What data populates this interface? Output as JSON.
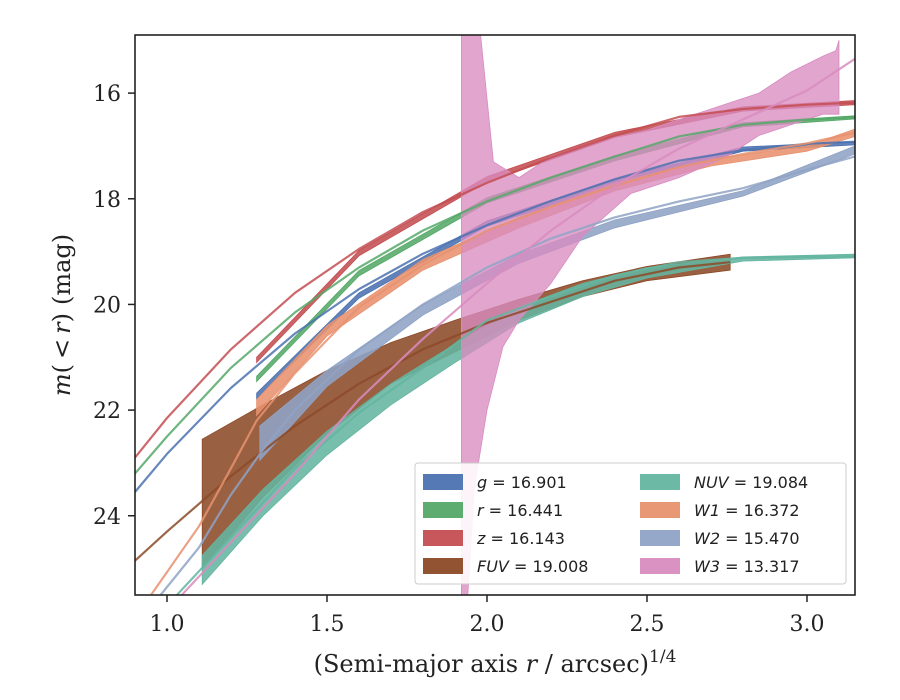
{
  "chart_data": {
    "type": "line",
    "xlabel": "(Semi-major axis r / arcsec)^1/4",
    "xlabel_parts": {
      "pre": "(Semi-major axis ",
      "var": "r",
      "post": " / arcsec)",
      "sup": "1/4"
    },
    "ylabel": "m(<r) (mag)",
    "ylabel_parts": {
      "m": "m",
      "open": "(",
      "lt": "<",
      "r": "r",
      "close": ")",
      "unit": "(mag)"
    },
    "xlim": [
      0.9,
      3.15
    ],
    "ylim": [
      25.5,
      14.9
    ],
    "y_inverted": true,
    "x_ticks": [
      {
        "v": 1.0,
        "label": "1.0"
      },
      {
        "v": 1.5,
        "label": "1.5"
      },
      {
        "v": 2.0,
        "label": "2.0"
      },
      {
        "v": 2.5,
        "label": "2.5"
      },
      {
        "v": 3.0,
        "label": "3.0"
      }
    ],
    "y_ticks": [
      {
        "v": 16,
        "label": "16"
      },
      {
        "v": 18,
        "label": "18"
      },
      {
        "v": 20,
        "label": "20"
      },
      {
        "v": 22,
        "label": "22"
      },
      {
        "v": 24,
        "label": "24"
      }
    ],
    "grid": false,
    "legend_position": "lower-right",
    "legend_columns": 2,
    "series": [
      {
        "id": "g",
        "band": "g",
        "value": "16.901",
        "color": "#4c72b0",
        "model": [
          [
            0.9,
            23.55
          ],
          [
            1.0,
            22.83
          ],
          [
            1.2,
            21.58
          ],
          [
            1.4,
            20.55
          ],
          [
            1.6,
            19.71
          ],
          [
            1.8,
            19.04
          ],
          [
            2.0,
            18.5
          ],
          [
            2.2,
            18.04
          ],
          [
            2.4,
            17.63
          ],
          [
            2.6,
            17.28
          ],
          [
            2.8,
            17.08
          ],
          [
            3.0,
            16.96
          ],
          [
            3.15,
            16.92
          ]
        ],
        "band_upper": [
          [
            1.28,
            21.68
          ],
          [
            1.6,
            19.78
          ],
          [
            2.0,
            18.42
          ],
          [
            2.4,
            17.63
          ],
          [
            2.8,
            17.02
          ],
          [
            3.15,
            16.92
          ]
        ],
        "band_lower": [
          [
            1.28,
            21.78
          ],
          [
            1.6,
            19.88
          ],
          [
            2.0,
            18.52
          ],
          [
            2.4,
            17.73
          ],
          [
            2.8,
            17.1
          ],
          [
            3.15,
            16.98
          ]
        ]
      },
      {
        "id": "r",
        "band": "r",
        "value": "16.441",
        "color": "#55a868",
        "model": [
          [
            0.9,
            23.2
          ],
          [
            1.0,
            22.5
          ],
          [
            1.2,
            21.2
          ],
          [
            1.4,
            20.15
          ],
          [
            1.6,
            19.3
          ],
          [
            1.8,
            18.6
          ],
          [
            2.0,
            18.05
          ],
          [
            2.2,
            17.6
          ],
          [
            2.4,
            17.2
          ],
          [
            2.6,
            16.82
          ],
          [
            2.8,
            16.6
          ],
          [
            3.0,
            16.5
          ],
          [
            3.15,
            16.46
          ]
        ],
        "band_upper": [
          [
            1.28,
            21.36
          ],
          [
            1.6,
            19.36
          ],
          [
            2.0,
            17.98
          ],
          [
            2.4,
            17.18
          ],
          [
            2.8,
            16.56
          ],
          [
            3.15,
            16.43
          ]
        ],
        "band_lower": [
          [
            1.28,
            21.46
          ],
          [
            1.6,
            19.46
          ],
          [
            2.0,
            18.08
          ],
          [
            2.4,
            17.28
          ],
          [
            2.8,
            16.64
          ],
          [
            3.15,
            16.49
          ]
        ]
      },
      {
        "id": "z",
        "band": "z",
        "value": "16.143",
        "color": "#c44e52",
        "model": [
          [
            0.9,
            22.9
          ],
          [
            1.0,
            22.15
          ],
          [
            1.2,
            20.85
          ],
          [
            1.4,
            19.78
          ],
          [
            1.6,
            18.95
          ],
          [
            1.8,
            18.25
          ],
          [
            2.0,
            17.7
          ],
          [
            2.2,
            17.22
          ],
          [
            2.4,
            16.8
          ],
          [
            2.6,
            16.45
          ],
          [
            2.8,
            16.3
          ],
          [
            3.0,
            16.22
          ],
          [
            3.15,
            16.18
          ]
        ],
        "band_upper": [
          [
            1.28,
            21.0
          ],
          [
            1.6,
            18.98
          ],
          [
            2.0,
            17.58
          ],
          [
            2.4,
            16.74
          ],
          [
            2.8,
            16.26
          ],
          [
            3.15,
            16.14
          ]
        ],
        "band_lower": [
          [
            1.28,
            21.1
          ],
          [
            1.6,
            19.08
          ],
          [
            2.0,
            17.68
          ],
          [
            2.4,
            16.84
          ],
          [
            2.8,
            16.34
          ],
          [
            3.15,
            16.22
          ]
        ]
      },
      {
        "id": "FUV",
        "band": "FUV",
        "value": "19.008",
        "color": "#8c4a28",
        "model": [
          [
            0.9,
            24.85
          ],
          [
            1.0,
            24.3
          ],
          [
            1.2,
            23.25
          ],
          [
            1.4,
            22.3
          ],
          [
            1.6,
            21.5
          ],
          [
            1.8,
            20.85
          ],
          [
            2.0,
            20.35
          ],
          [
            2.2,
            19.95
          ],
          [
            2.4,
            19.55
          ],
          [
            2.6,
            19.3
          ],
          [
            2.76,
            19.2
          ]
        ],
        "band_upper": [
          [
            1.11,
            22.55
          ],
          [
            1.3,
            21.9
          ],
          [
            1.5,
            21.25
          ],
          [
            1.7,
            20.72
          ],
          [
            1.9,
            20.3
          ],
          [
            2.1,
            19.9
          ],
          [
            2.3,
            19.55
          ],
          [
            2.5,
            19.28
          ],
          [
            2.76,
            19.05
          ]
        ],
        "band_lower": [
          [
            1.11,
            25.0
          ],
          [
            1.3,
            23.65
          ],
          [
            1.5,
            22.45
          ],
          [
            1.7,
            21.5
          ],
          [
            1.9,
            20.9
          ],
          [
            2.1,
            20.3
          ],
          [
            2.3,
            19.85
          ],
          [
            2.5,
            19.55
          ],
          [
            2.76,
            19.35
          ]
        ]
      },
      {
        "id": "NUV",
        "band": "NUV",
        "value": "19.084",
        "color": "#64b5a0",
        "model": [
          [
            0.9,
            26.3
          ],
          [
            1.0,
            25.7
          ],
          [
            1.2,
            24.4
          ],
          [
            1.4,
            23.1
          ],
          [
            1.6,
            22.05
          ],
          [
            1.8,
            21.2
          ],
          [
            2.0,
            20.3
          ],
          [
            2.2,
            19.85
          ],
          [
            2.4,
            19.45
          ],
          [
            2.6,
            19.2
          ],
          [
            2.8,
            19.12
          ],
          [
            3.0,
            19.1
          ],
          [
            3.15,
            19.09
          ]
        ],
        "band_upper": [
          [
            1.11,
            24.75
          ],
          [
            1.3,
            23.5
          ],
          [
            1.5,
            22.4
          ],
          [
            1.7,
            21.5
          ],
          [
            1.9,
            20.75
          ],
          [
            2.1,
            20.05
          ],
          [
            2.3,
            19.6
          ],
          [
            2.5,
            19.3
          ],
          [
            2.8,
            19.1
          ],
          [
            3.15,
            19.05
          ]
        ],
        "band_lower": [
          [
            1.11,
            25.3
          ],
          [
            1.3,
            24.0
          ],
          [
            1.5,
            22.85
          ],
          [
            1.7,
            21.9
          ],
          [
            1.9,
            21.1
          ],
          [
            2.1,
            20.35
          ],
          [
            2.3,
            19.85
          ],
          [
            2.5,
            19.5
          ],
          [
            2.8,
            19.18
          ],
          [
            3.15,
            19.12
          ]
        ]
      },
      {
        "id": "W1",
        "band": "W1",
        "value": "16.372",
        "color": "#e8926e",
        "model": [
          [
            0.95,
            25.5
          ],
          [
            1.1,
            24.2
          ],
          [
            1.2,
            23.1
          ],
          [
            1.28,
            22.2
          ],
          [
            1.4,
            21.3
          ],
          [
            1.6,
            20.05
          ],
          [
            1.8,
            19.25
          ],
          [
            2.0,
            18.6
          ],
          [
            2.2,
            18.15
          ],
          [
            2.4,
            17.75
          ],
          [
            2.6,
            17.4
          ],
          [
            2.8,
            17.15
          ],
          [
            3.0,
            16.95
          ],
          [
            3.15,
            16.75
          ]
        ],
        "band_upper": [
          [
            1.28,
            21.8
          ],
          [
            1.5,
            20.4
          ],
          [
            1.8,
            19.15
          ],
          [
            2.1,
            18.35
          ],
          [
            2.4,
            17.7
          ],
          [
            2.7,
            17.25
          ],
          [
            3.0,
            17.0
          ],
          [
            3.15,
            16.68
          ]
        ],
        "band_lower": [
          [
            1.28,
            22.1
          ],
          [
            1.5,
            20.6
          ],
          [
            1.8,
            19.35
          ],
          [
            2.1,
            18.55
          ],
          [
            2.4,
            17.85
          ],
          [
            2.7,
            17.38
          ],
          [
            3.0,
            17.1
          ],
          [
            3.15,
            16.82
          ]
        ]
      },
      {
        "id": "W2",
        "band": "W2",
        "value": "15.470",
        "color": "#8fa3c6",
        "model": [
          [
            0.98,
            25.5
          ],
          [
            1.1,
            24.6
          ],
          [
            1.2,
            23.6
          ],
          [
            1.3,
            22.75
          ],
          [
            1.4,
            22.0
          ],
          [
            1.6,
            20.85
          ],
          [
            1.8,
            20.0
          ],
          [
            2.0,
            19.3
          ],
          [
            2.2,
            18.75
          ],
          [
            2.4,
            18.35
          ],
          [
            2.6,
            18.05
          ],
          [
            2.8,
            17.8
          ],
          [
            3.0,
            17.45
          ],
          [
            3.15,
            17.2
          ]
        ],
        "band_upper": [
          [
            1.29,
            22.3
          ],
          [
            1.5,
            21.25
          ],
          [
            1.8,
            20.0
          ],
          [
            2.1,
            19.05
          ],
          [
            2.4,
            18.4
          ],
          [
            2.8,
            17.85
          ],
          [
            3.15,
            17.0
          ]
        ],
        "band_lower": [
          [
            1.29,
            22.95
          ],
          [
            1.5,
            21.55
          ],
          [
            1.8,
            20.2
          ],
          [
            2.1,
            19.22
          ],
          [
            2.4,
            18.55
          ],
          [
            2.8,
            17.95
          ],
          [
            3.15,
            17.15
          ]
        ]
      },
      {
        "id": "W3",
        "band": "W3",
        "value": "13.317",
        "color": "#d88cc0",
        "model": [
          [
            0.9,
            26.5
          ],
          [
            1.0,
            25.8
          ],
          [
            1.2,
            24.5
          ],
          [
            1.4,
            23.2
          ],
          [
            1.6,
            21.8
          ],
          [
            1.8,
            20.65
          ],
          [
            2.0,
            19.6
          ],
          [
            2.2,
            18.6
          ],
          [
            2.4,
            17.75
          ],
          [
            2.6,
            17.05
          ],
          [
            2.8,
            16.5
          ],
          [
            3.0,
            15.95
          ],
          [
            3.15,
            15.35
          ]
        ],
        "band_upper": [
          [
            1.92,
            14.9
          ],
          [
            1.98,
            14.9
          ],
          [
            2.02,
            17.3
          ],
          [
            2.1,
            17.6
          ],
          [
            2.2,
            17.2
          ],
          [
            2.35,
            16.9
          ],
          [
            2.5,
            16.7
          ],
          [
            2.7,
            16.3
          ],
          [
            2.8,
            16.1
          ],
          [
            2.85,
            16.0
          ],
          [
            2.95,
            15.6
          ],
          [
            3.05,
            15.3
          ],
          [
            3.09,
            15.2
          ],
          [
            3.1,
            15.0
          ]
        ],
        "band_lower": [
          [
            1.92,
            25.5
          ],
          [
            1.94,
            25.5
          ],
          [
            1.96,
            23.5
          ],
          [
            2.0,
            22.0
          ],
          [
            2.05,
            20.8
          ],
          [
            2.1,
            20.3
          ],
          [
            2.2,
            19.6
          ],
          [
            2.3,
            18.7
          ],
          [
            2.45,
            17.9
          ],
          [
            2.6,
            17.6
          ],
          [
            2.75,
            17.2
          ],
          [
            2.85,
            16.8
          ],
          [
            2.95,
            16.6
          ],
          [
            3.05,
            16.4
          ],
          [
            3.1,
            16.4
          ]
        ]
      }
    ]
  }
}
